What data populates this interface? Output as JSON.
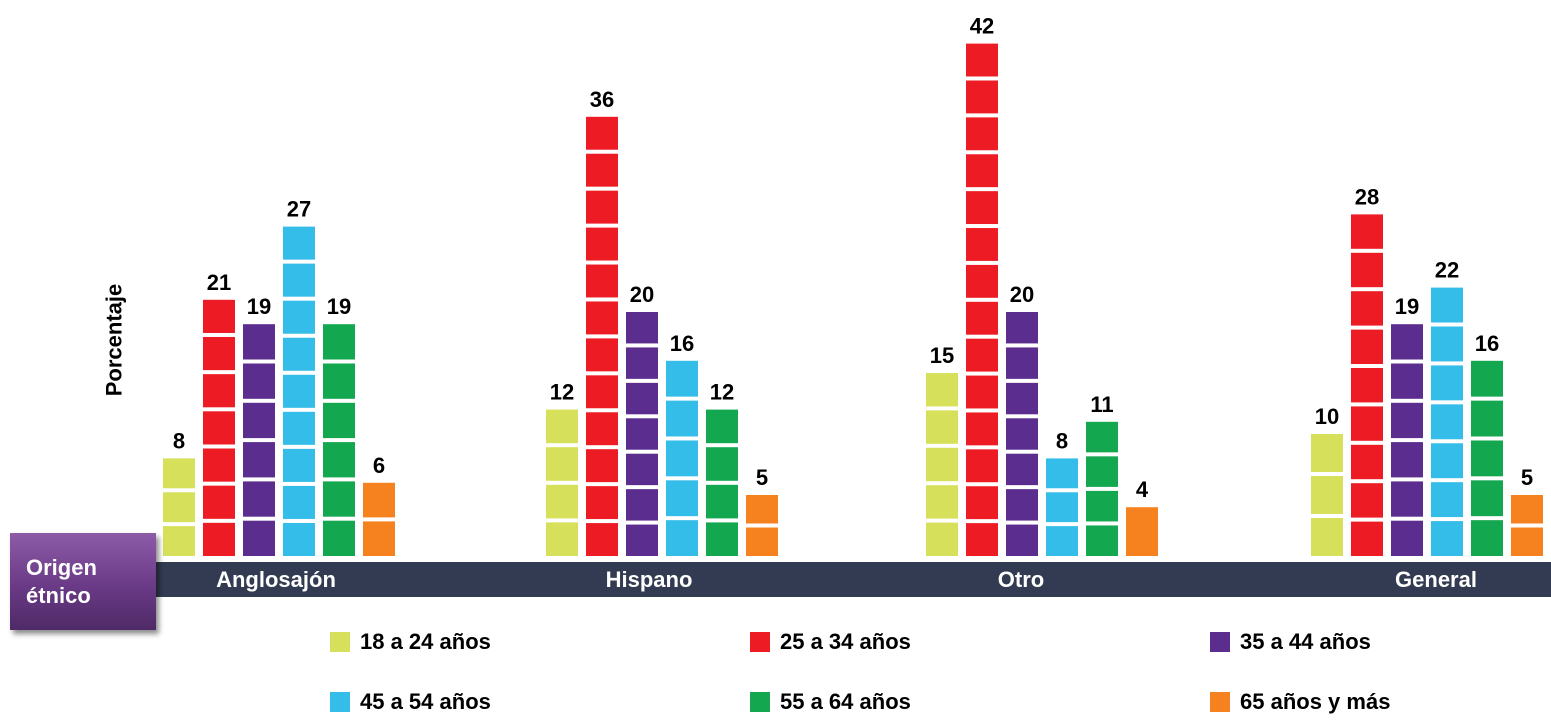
{
  "chart_data": {
    "type": "bar",
    "title": "",
    "xlabel": "",
    "ylabel": "Porcentaje",
    "axis_badge": [
      "Origen",
      "étnico"
    ],
    "categories": [
      "Anglosajón",
      "Hispano",
      "Otro",
      "General"
    ],
    "series": [
      {
        "name": "18 a 24 años",
        "color": "#d6e05a",
        "values": [
          8,
          12,
          15,
          10
        ]
      },
      {
        "name": "25 a 34 años",
        "color": "#ed1c24",
        "values": [
          21,
          36,
          42,
          28
        ]
      },
      {
        "name": "35 a 44 años",
        "color": "#5b2d8e",
        "values": [
          19,
          20,
          20,
          19
        ]
      },
      {
        "name": "45 a 54 años",
        "color": "#33bde8",
        "values": [
          27,
          16,
          8,
          22
        ]
      },
      {
        "name": "55 a 64 años",
        "color": "#13a74f",
        "values": [
          19,
          12,
          11,
          16
        ]
      },
      {
        "name": "65 años y más",
        "color": "#f5821f",
        "values": [
          6,
          5,
          4,
          5
        ]
      }
    ],
    "ylim": [
      0,
      42
    ],
    "grid": false,
    "legend_position": "bottom",
    "axis_bar_color": "#333b52"
  }
}
